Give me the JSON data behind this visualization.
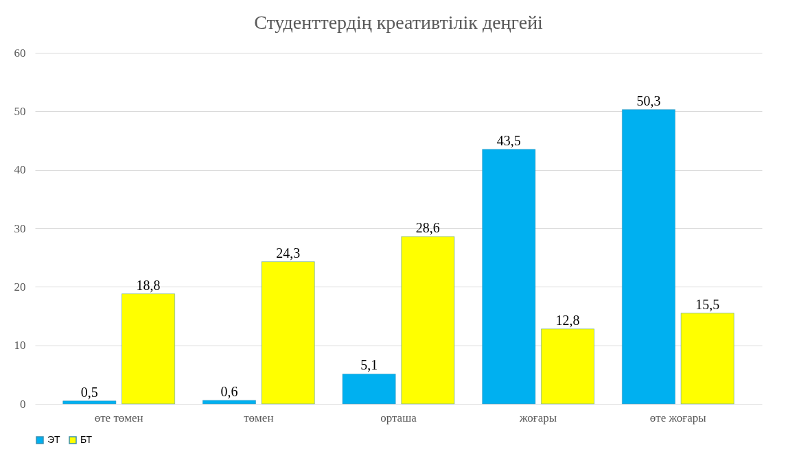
{
  "chart_data": {
    "type": "bar",
    "title": "Студенттердің креативтілік деңгейі",
    "categories": [
      "өте төмен",
      "төмен",
      "орташа",
      "жоғары",
      "өте жоғары"
    ],
    "series": [
      {
        "name": "ЭТ",
        "color": "#00b0f0",
        "values": [
          0.5,
          0.6,
          5.1,
          43.5,
          50.3
        ],
        "value_labels": [
          "0,5",
          "0,6",
          "5,1",
          "43,5",
          "50,3"
        ]
      },
      {
        "name": "БТ",
        "color": "#ffff00",
        "values": [
          18.8,
          24.3,
          28.6,
          12.8,
          15.5
        ],
        "value_labels": [
          "18,8",
          "24,3",
          "28,6",
          "12,8",
          "15,5"
        ]
      }
    ],
    "ylim": [
      0,
      60
    ],
    "yticks": [
      0,
      10,
      20,
      30,
      40,
      50,
      60
    ],
    "grid": "y",
    "legend": "bottom"
  }
}
